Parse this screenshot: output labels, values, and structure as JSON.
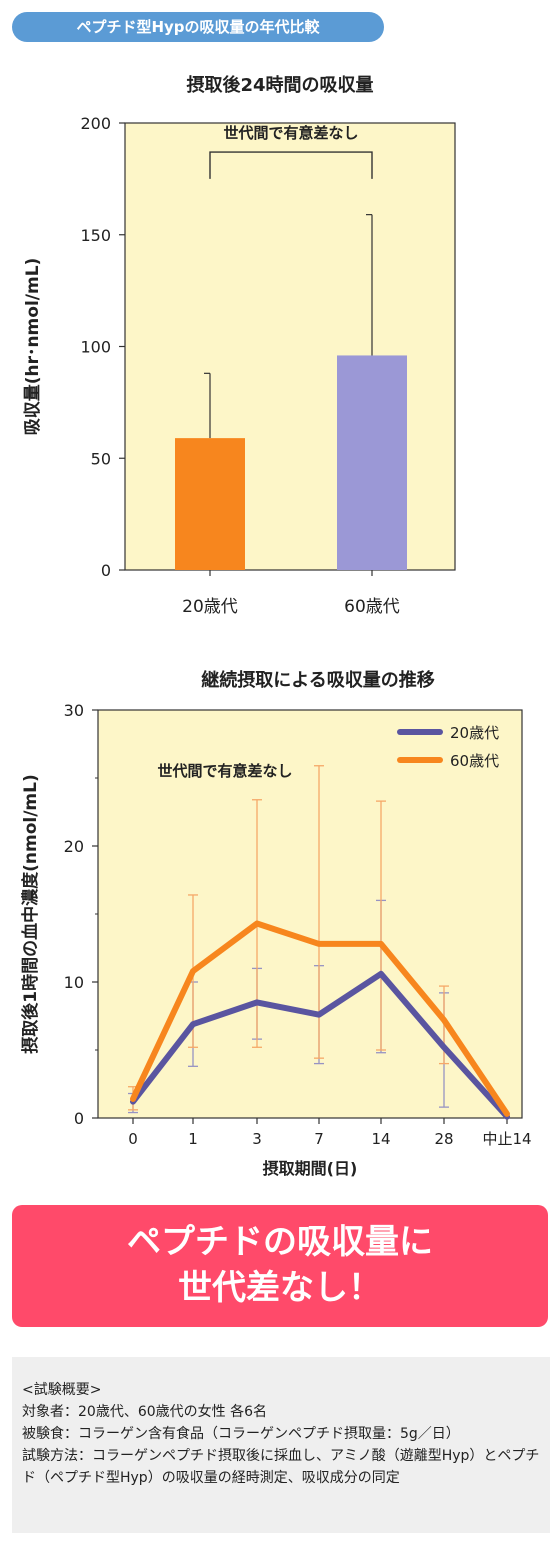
{
  "header": {
    "tag": "ペプチド型Hypの吸収量の年代比較"
  },
  "chart_data": [
    {
      "type": "bar",
      "title": "摂取後24時間の吸収量",
      "ylabel": "吸収量(hr･nmol/mL)",
      "xlabel": "",
      "ylim": [
        0,
        200
      ],
      "yticks": [
        0,
        50,
        100,
        150,
        200
      ],
      "categories": [
        "20歳代",
        "60歳代"
      ],
      "values": [
        59,
        96
      ],
      "error_upper": [
        88,
        159
      ],
      "colors": [
        "#f7861e",
        "#9b98d6"
      ],
      "annotation": "世代間で有意差なし",
      "background": "#fdf6c8"
    },
    {
      "type": "line",
      "title": "継続摂取による吸収量の推移",
      "ylabel": "摂取後1時間の血中濃度(nmol/mL)",
      "xlabel": "摂取期間(日)",
      "ylim": [
        0,
        30
      ],
      "yticks": [
        0,
        10,
        20,
        30
      ],
      "categories": [
        "0",
        "1",
        "3",
        "7",
        "14",
        "28",
        "中止14"
      ],
      "annotation": "世代間で有意差なし",
      "legend_position": "top-right",
      "background": "#fdf6c8",
      "series": [
        {
          "name": "20歳代",
          "color": "#5a55a0",
          "values": [
            1.2,
            6.9,
            8.5,
            7.6,
            10.6,
            5.2,
            0.1
          ],
          "error_low": [
            0.4,
            3.8,
            5.8,
            4.0,
            4.8,
            0.8,
            0.1
          ],
          "error_high": [
            1.8,
            10.0,
            11.0,
            11.2,
            16.0,
            9.2,
            0.1
          ]
        },
        {
          "name": "60歳代",
          "color": "#f7861e",
          "values": [
            1.4,
            10.8,
            14.3,
            12.8,
            12.8,
            7.2,
            0.3
          ],
          "error_low": [
            0.6,
            5.2,
            5.2,
            4.4,
            5.0,
            4.0,
            0.3
          ],
          "error_high": [
            2.3,
            16.4,
            23.4,
            25.9,
            23.3,
            9.7,
            0.3
          ]
        }
      ]
    }
  ],
  "banner": {
    "line1": "ペプチドの吸収量に",
    "line2": "世代差なし！"
  },
  "note": {
    "heading": "<試験概要>",
    "lines": [
      "対象者：20歳代、60歳代の女性 各6名",
      "被験食：コラーゲン含有食品（コラーゲンペプチド摂取量：5g／日）",
      "試験方法：コラーゲンペプチド摂取後に採血し、アミノ酸（遊離型Hyp）とペプチド（ペプチド型Hyp）の吸収量の経時測定、吸収成分の同定"
    ]
  }
}
